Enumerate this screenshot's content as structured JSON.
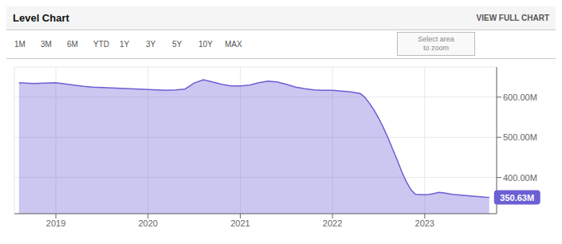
{
  "chart_data": {
    "type": "area",
    "title": "Level Chart",
    "x": [
      2018.6,
      2018.75,
      2019.0,
      2019.1,
      2019.2,
      2019.3,
      2019.4,
      2019.5,
      2019.6,
      2019.7,
      2019.8,
      2019.9,
      2020.0,
      2020.1,
      2020.2,
      2020.3,
      2020.4,
      2020.5,
      2020.6,
      2020.7,
      2020.8,
      2020.9,
      2021.0,
      2021.1,
      2021.2,
      2021.3,
      2021.4,
      2021.5,
      2021.6,
      2021.7,
      2021.8,
      2021.9,
      2022.0,
      2022.05,
      2022.1,
      2022.2,
      2022.3,
      2022.35,
      2022.4,
      2022.45,
      2022.5,
      2022.55,
      2022.6,
      2022.65,
      2022.7,
      2022.75,
      2022.8,
      2022.85,
      2022.9,
      2023.0,
      2023.05,
      2023.1,
      2023.15,
      2023.2,
      2023.25,
      2023.3,
      2023.35,
      2023.4,
      2023.45,
      2023.5,
      2023.55,
      2023.6,
      2023.65,
      2023.7
    ],
    "values": [
      636000000,
      634000000,
      636000000,
      633000000,
      630000000,
      627000000,
      625000000,
      624000000,
      623000000,
      622000000,
      621000000,
      620000000,
      619000000,
      618000000,
      617000000,
      618000000,
      620000000,
      635000000,
      643000000,
      638000000,
      632000000,
      628000000,
      628000000,
      630000000,
      636000000,
      640000000,
      638000000,
      632000000,
      625000000,
      621000000,
      618000000,
      617000000,
      617000000,
      616000000,
      615000000,
      613000000,
      609000000,
      600000000,
      585000000,
      568000000,
      548000000,
      525000000,
      500000000,
      472000000,
      445000000,
      415000000,
      390000000,
      370000000,
      358000000,
      357000000,
      358000000,
      360000000,
      363000000,
      362000000,
      360000000,
      358000000,
      357000000,
      356000000,
      355000000,
      354000000,
      353000000,
      352000000,
      351000000,
      350630000
    ],
    "color": "#6B5FD4",
    "xlim": [
      2018.55,
      2023.78
    ],
    "xticks": [
      2019,
      2020,
      2021,
      2022,
      2023
    ],
    "ylim": [
      310000000,
      675000000
    ],
    "yticks": [
      {
        "value": 400000000,
        "label": "400.00M"
      },
      {
        "value": 500000000,
        "label": "500.00M"
      },
      {
        "value": 600000000,
        "label": "600.00M"
      }
    ],
    "grid": true,
    "annotations": [
      {
        "text": "VIEW FULL CHART"
      },
      {
        "text": "1M"
      },
      {
        "text": "3M"
      },
      {
        "text": "6M"
      },
      {
        "text": "YTD"
      },
      {
        "text": "1Y"
      },
      {
        "text": "3Y"
      },
      {
        "text": "5Y"
      },
      {
        "text": "10Y"
      },
      {
        "text": "MAX"
      },
      {
        "text": "Select area\nto zoom"
      },
      {
        "text": "350.63M",
        "x": 2023.7,
        "y": 350630000
      }
    ]
  }
}
